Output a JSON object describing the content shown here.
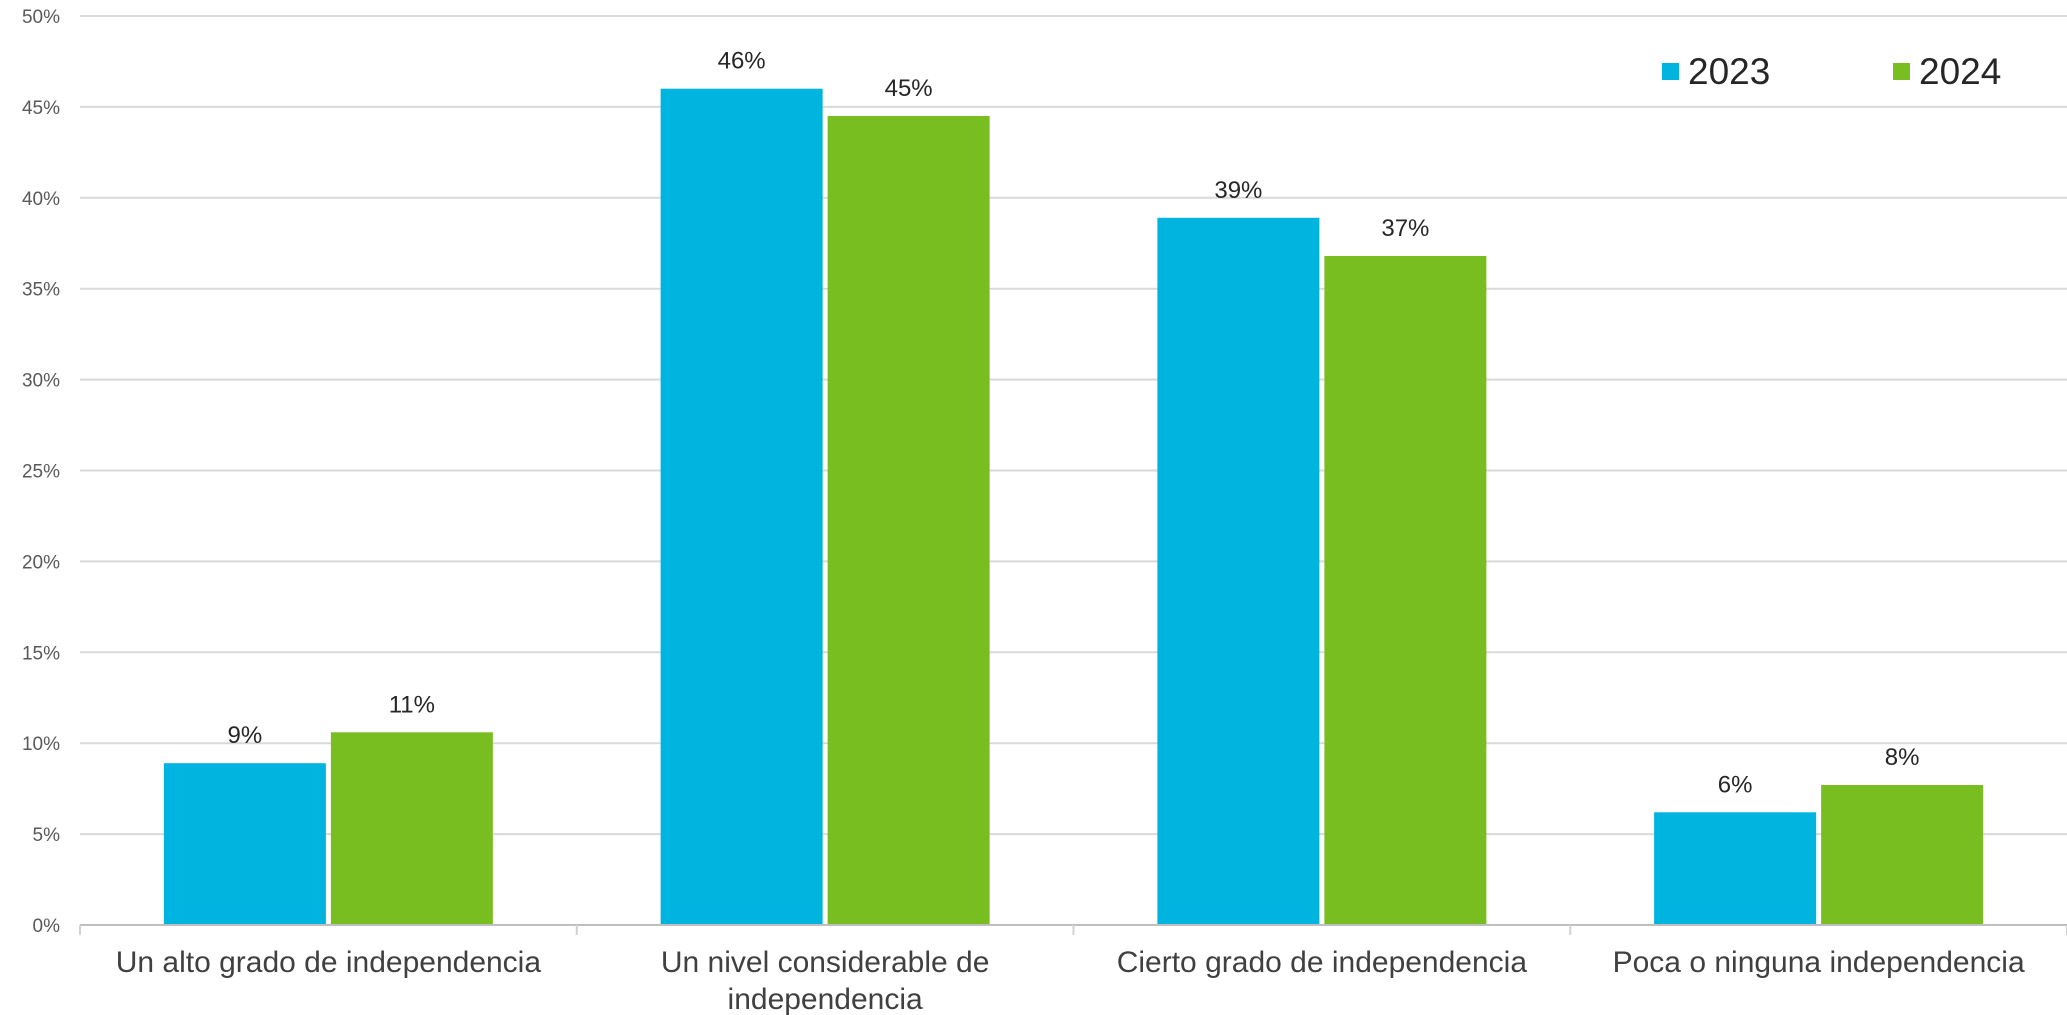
{
  "chart_data": {
    "type": "bar",
    "categories": [
      [
        "Un alto grado de independencia"
      ],
      [
        "Un nivel considerable de",
        "independencia"
      ],
      [
        "Cierto grado de independencia"
      ],
      [
        "Poca o ninguna independencia"
      ]
    ],
    "series": [
      {
        "name": "2023",
        "color": "#00b4e0",
        "values": [
          8.9,
          46.0,
          38.9,
          6.2
        ],
        "labels": [
          "9%",
          "46%",
          "39%",
          "6%"
        ]
      },
      {
        "name": "2024",
        "color": "#78be21",
        "values": [
          10.6,
          44.5,
          36.8,
          7.7
        ],
        "labels": [
          "11%",
          "45%",
          "37%",
          "8%"
        ]
      }
    ],
    "ylim": [
      0,
      50
    ],
    "yticks": [
      0,
      5,
      10,
      15,
      20,
      25,
      30,
      35,
      40,
      45,
      50
    ],
    "ytick_labels": [
      "0%",
      "5%",
      "10%",
      "15%",
      "20%",
      "25%",
      "30%",
      "35%",
      "40%",
      "45%",
      "50%"
    ],
    "grid": true,
    "legend_position": "top-right"
  }
}
